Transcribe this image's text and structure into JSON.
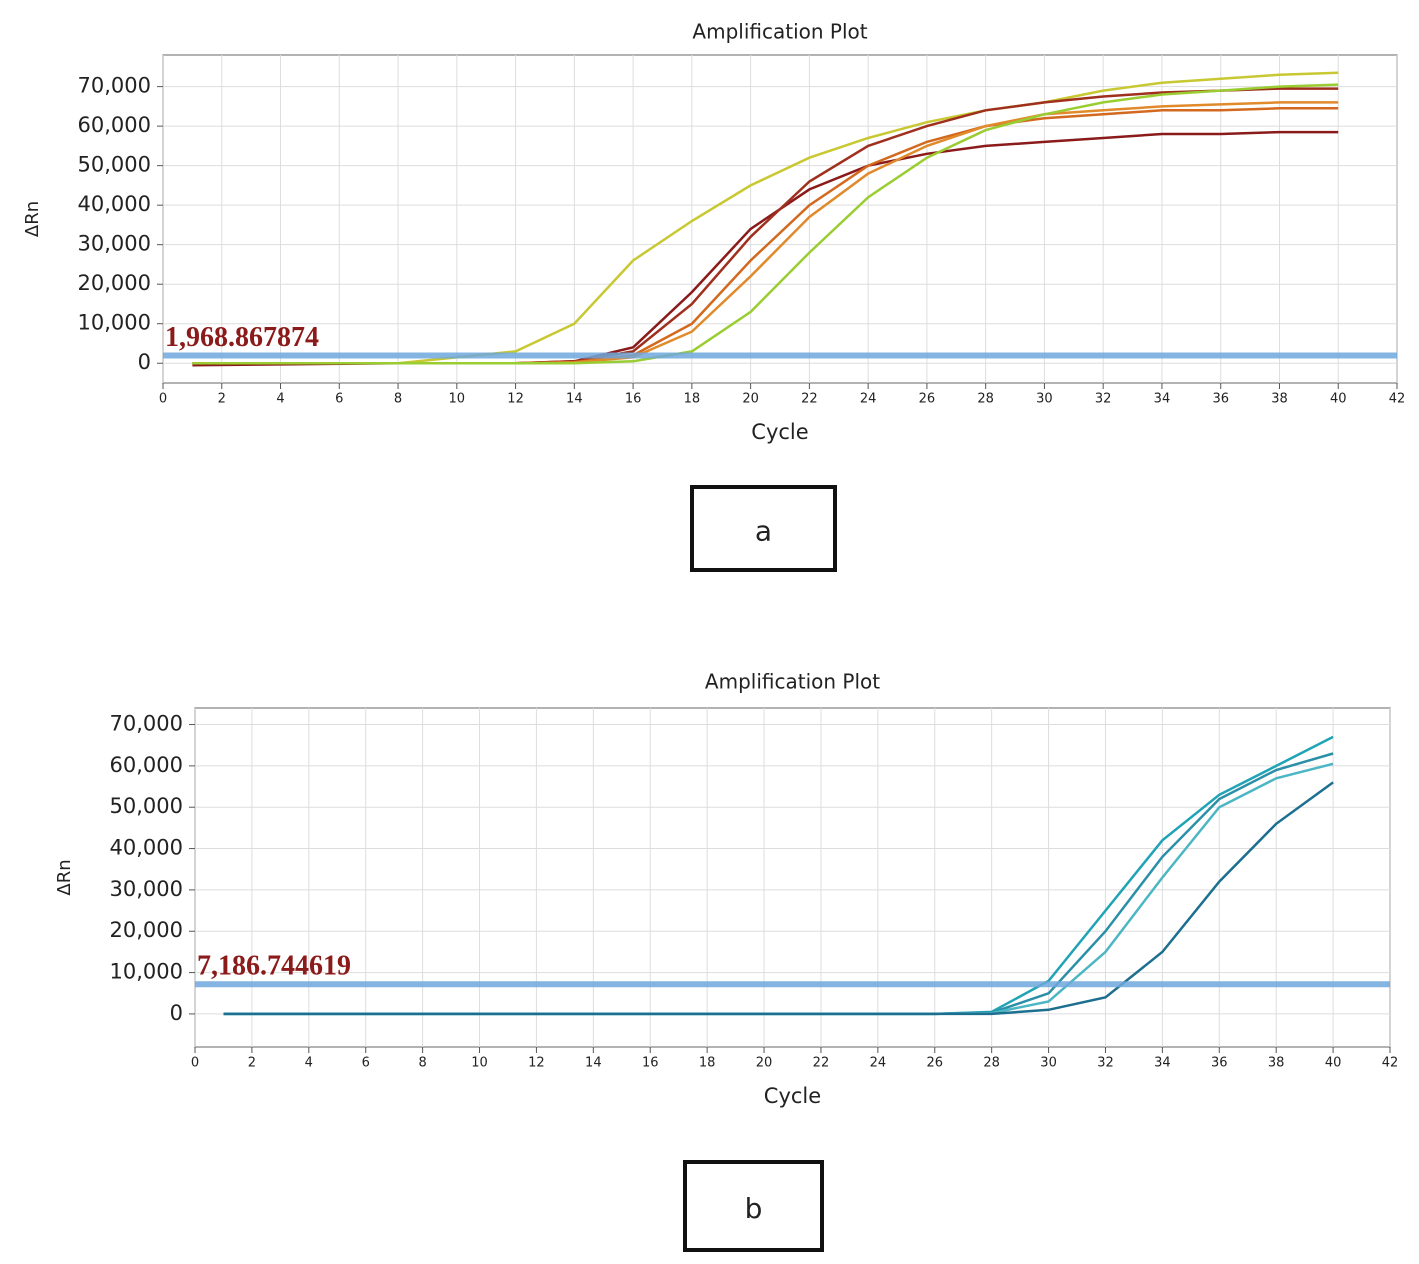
{
  "chart_data": [
    {
      "type": "line",
      "title": "Amplification Plot",
      "xlabel": "Cycle",
      "ylabel": "ΔRn",
      "panel_label": "a",
      "x": [
        1,
        4,
        8,
        12,
        14,
        16,
        18,
        20,
        22,
        24,
        26,
        28,
        30,
        32,
        34,
        36,
        38,
        40
      ],
      "series": [
        {
          "color": "#c8c832",
          "values": [
            0,
            0,
            0,
            3000,
            10000,
            26000,
            36000,
            45000,
            52000,
            57000,
            61000,
            64000,
            66000,
            69000,
            71000,
            72000,
            73000,
            73500
          ]
        },
        {
          "color": "#8b1a1a",
          "values": [
            -500,
            -300,
            0,
            0,
            500,
            4000,
            18000,
            34000,
            44000,
            50000,
            53000,
            55000,
            56000,
            57000,
            58000,
            58000,
            58500,
            58500
          ]
        },
        {
          "color": "#a0301e",
          "values": [
            0,
            0,
            0,
            0,
            500,
            3000,
            15000,
            32000,
            46000,
            55000,
            60000,
            64000,
            66000,
            67500,
            68500,
            69000,
            69500,
            69500
          ]
        },
        {
          "color": "#d2691e",
          "values": [
            0,
            0,
            0,
            0,
            300,
            2000,
            10000,
            26000,
            40000,
            50000,
            56000,
            60000,
            62000,
            63000,
            64000,
            64000,
            64500,
            64500
          ]
        },
        {
          "color": "#e08a2c",
          "values": [
            0,
            0,
            0,
            0,
            200,
            1500,
            8000,
            22000,
            37000,
            48000,
            55000,
            60000,
            63000,
            64000,
            65000,
            65500,
            66000,
            66000
          ]
        },
        {
          "color": "#9acd32",
          "values": [
            0,
            0,
            0,
            0,
            0,
            500,
            3000,
            13000,
            28000,
            42000,
            52000,
            59000,
            63000,
            66000,
            68000,
            69000,
            70000,
            70500
          ]
        }
      ],
      "threshold": {
        "value": 1968.867874,
        "label": "1,968.867874",
        "color": "#6fa8dc"
      },
      "xlim": [
        0,
        42
      ],
      "xticks": [
        0,
        2,
        4,
        6,
        8,
        10,
        12,
        14,
        16,
        18,
        20,
        22,
        24,
        26,
        28,
        30,
        32,
        34,
        36,
        38,
        40,
        42
      ],
      "ylim": [
        -5000,
        78000
      ],
      "yticks": [
        0,
        {
          "value": 10000,
          "label": "10,000"
        },
        {
          "value": 20000,
          "label": "20,000"
        },
        {
          "value": 30000,
          "label": "30,000"
        },
        {
          "value": 40000,
          "label": "40,000"
        },
        {
          "value": 50000,
          "label": "50,000"
        },
        {
          "value": 60000,
          "label": "60,000"
        },
        {
          "value": 70000,
          "label": "70,000"
        }
      ],
      "grid": true
    },
    {
      "type": "line",
      "title": "Amplification Plot",
      "xlabel": "Cycle",
      "ylabel": "ΔRn",
      "panel_label": "b",
      "x": [
        1,
        4,
        8,
        12,
        16,
        20,
        24,
        26,
        28,
        30,
        32,
        34,
        36,
        38,
        40
      ],
      "series": [
        {
          "color": "#1fa3b5",
          "values": [
            0,
            0,
            0,
            0,
            0,
            0,
            0,
            0,
            500,
            8000,
            25000,
            42000,
            53000,
            60000,
            67000
          ]
        },
        {
          "color": "#2b8fa8",
          "values": [
            0,
            0,
            0,
            0,
            0,
            0,
            0,
            0,
            300,
            5000,
            20000,
            38000,
            52000,
            59000,
            63000
          ]
        },
        {
          "color": "#4cb6c4",
          "values": [
            0,
            0,
            0,
            0,
            0,
            0,
            0,
            0,
            200,
            3000,
            15000,
            33000,
            50000,
            57000,
            60500
          ]
        },
        {
          "color": "#1c6f8f",
          "values": [
            0,
            0,
            0,
            0,
            0,
            0,
            0,
            0,
            0,
            1000,
            4000,
            15000,
            32000,
            46000,
            56000
          ]
        }
      ],
      "threshold": {
        "value": 7186.744619,
        "label": "7,186.744619",
        "color": "#6fa8dc"
      },
      "xlim": [
        0,
        42
      ],
      "xticks": [
        0,
        2,
        4,
        6,
        8,
        10,
        12,
        14,
        16,
        18,
        20,
        22,
        24,
        26,
        28,
        30,
        32,
        34,
        36,
        38,
        40,
        42
      ],
      "ylim": [
        -8000,
        74000
      ],
      "yticks": [
        0,
        {
          "value": 10000,
          "label": "10,000"
        },
        {
          "value": 20000,
          "label": "20,000"
        },
        {
          "value": 30000,
          "label": "30,000"
        },
        {
          "value": 40000,
          "label": "40,000"
        },
        {
          "value": 50000,
          "label": "50,000"
        },
        {
          "value": 60000,
          "label": "60,000"
        },
        {
          "value": 70000,
          "label": "70,000"
        }
      ],
      "grid": true
    }
  ]
}
